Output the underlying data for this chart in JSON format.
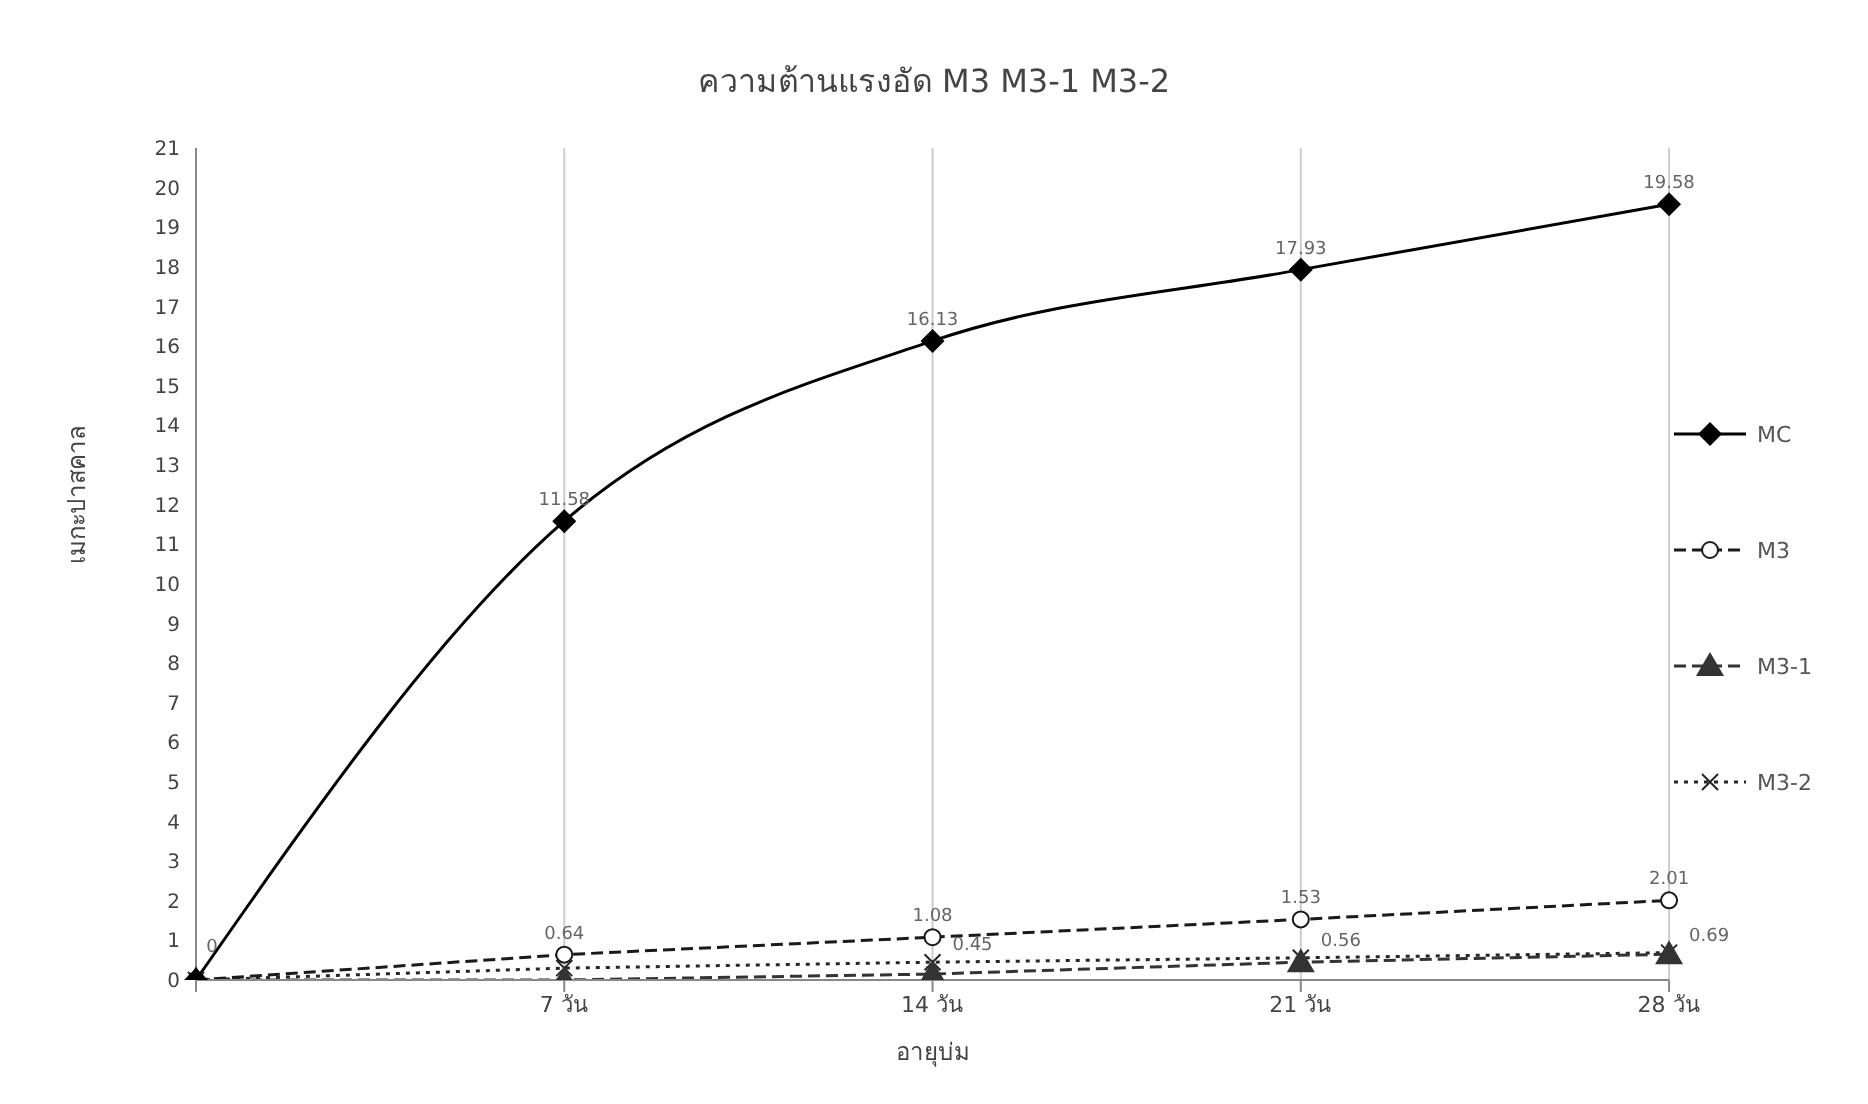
{
  "chart_data": {
    "type": "line",
    "title": "ความต้านแรงอัด M3   M3-1   M3-2",
    "xlabel": "อายุบ่ม",
    "ylabel": "เมกะปาสคาล",
    "categories": [
      null,
      "7 วัน",
      "14 วัน",
      "21 วัน",
      "28 วัน"
    ],
    "series": [
      {
        "name": "MC",
        "color": "#000000",
        "marker": "diamond",
        "line_style": "solid",
        "values": [
          0,
          11.58,
          16.13,
          17.93,
          19.58
        ],
        "value_labels": [
          "0",
          "11.58",
          "16.13",
          "17.93",
          "19.58"
        ]
      },
      {
        "name": "M3",
        "color": "#1a1a1a",
        "marker": "circle",
        "line_style": "dashed",
        "values": [
          0,
          0.64,
          1.08,
          1.53,
          2.01
        ],
        "value_labels": [
          null,
          "0.64",
          "1.08",
          "1.53",
          "2.01"
        ]
      },
      {
        "name": "M3-1",
        "color": "#333333",
        "marker": "triangle",
        "line_style": "dashed",
        "values": [
          0,
          0,
          0.15,
          0.45,
          0.65
        ]
      },
      {
        "name": "M3-2",
        "color": "#262626",
        "marker": "cross",
        "line_style": "dotted",
        "values": [
          0,
          0.3,
          0.45,
          0.56,
          0.69
        ],
        "value_labels": [
          null,
          null,
          "0.45",
          "0.56",
          "0.69"
        ]
      }
    ],
    "ylim": [
      0,
      21
    ],
    "yticks": [
      0,
      1,
      2,
      3,
      4,
      5,
      6,
      7,
      8,
      9,
      10,
      11,
      12,
      13,
      14,
      15,
      16,
      17,
      18,
      19,
      20,
      21
    ],
    "grid": "x",
    "legend": "right"
  }
}
